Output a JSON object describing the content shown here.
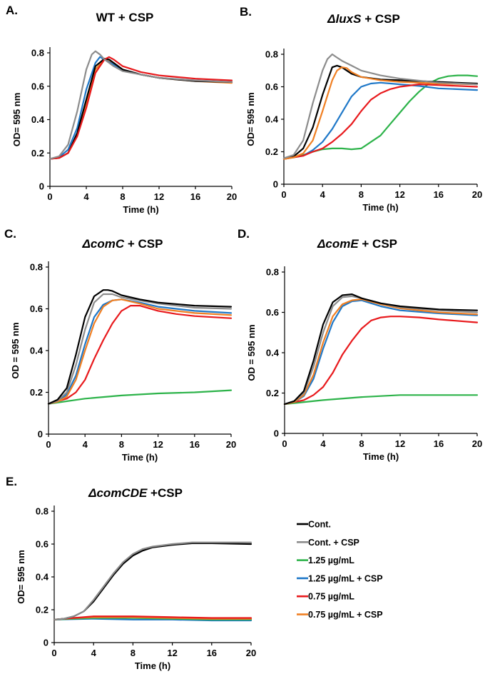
{
  "chart_data": [
    {
      "type": "line",
      "panel_label": "A.",
      "title_parts": [
        {
          "text": "WT + CSP",
          "italic": false
        }
      ],
      "xlabel": "Time (h)",
      "ylabel": "OD= 595 nm",
      "xlim": [
        0,
        20
      ],
      "ylim": [
        0,
        0.8
      ],
      "xticks": [
        "0",
        "4",
        "8",
        "12",
        "16",
        "20"
      ],
      "yticks": [
        "0",
        "0.2",
        "0.4",
        "0.6",
        "0.8"
      ],
      "series": [
        {
          "name": "0.75 µg/mL + CSP",
          "x": [
            0,
            1,
            2,
            3,
            4,
            5,
            6,
            7,
            8,
            10,
            12,
            16,
            20
          ],
          "y": [
            0.165,
            0.17,
            0.2,
            0.3,
            0.5,
            0.7,
            0.765,
            0.74,
            0.7,
            0.67,
            0.65,
            0.63,
            0.62
          ]
        },
        {
          "name": "1.25 µg/mL + CSP",
          "x": [
            0,
            1,
            2,
            3,
            4,
            5,
            5.5,
            6,
            7,
            8,
            10,
            12,
            16,
            20
          ],
          "y": [
            0.165,
            0.175,
            0.22,
            0.35,
            0.58,
            0.74,
            0.775,
            0.76,
            0.73,
            0.7,
            0.67,
            0.65,
            0.635,
            0.625
          ]
        },
        {
          "name": "Cont.",
          "x": [
            0,
            1,
            2,
            3,
            4,
            5,
            6,
            6.5,
            7,
            8,
            10,
            12,
            16,
            20
          ],
          "y": [
            0.165,
            0.17,
            0.2,
            0.32,
            0.52,
            0.72,
            0.765,
            0.76,
            0.74,
            0.7,
            0.67,
            0.65,
            0.63,
            0.625
          ]
        },
        {
          "name": "0.75 µg/mL",
          "x": [
            0,
            1,
            2,
            3,
            4,
            5,
            6,
            6.5,
            7,
            8,
            10,
            12,
            16,
            20
          ],
          "y": [
            0.165,
            0.17,
            0.2,
            0.3,
            0.47,
            0.68,
            0.76,
            0.775,
            0.76,
            0.72,
            0.685,
            0.665,
            0.645,
            0.635
          ]
        },
        {
          "name": "Cont. + CSP",
          "x": [
            0,
            1,
            2,
            3,
            4,
            4.6,
            5,
            5.5,
            6,
            7,
            8,
            10,
            12,
            16,
            20
          ],
          "y": [
            0.165,
            0.18,
            0.25,
            0.45,
            0.7,
            0.79,
            0.81,
            0.79,
            0.76,
            0.72,
            0.69,
            0.67,
            0.65,
            0.635,
            0.625
          ]
        }
      ]
    },
    {
      "type": "line",
      "panel_label": "B.",
      "title_parts": [
        {
          "text": "ΔluxS",
          "italic": true
        },
        {
          "text": " + CSP",
          "italic": false
        }
      ],
      "xlabel": "Time (h)",
      "ylabel": "OD= 595 nm",
      "xlim": [
        0,
        20
      ],
      "ylim": [
        0,
        0.8
      ],
      "xticks": [
        "0",
        "4",
        "8",
        "12",
        "16",
        "20"
      ],
      "yticks": [
        "0",
        "0.2",
        "0.4",
        "0.6",
        "0.8"
      ],
      "series": [
        {
          "name": "1.25 µg/mL",
          "x": [
            0,
            1,
            2,
            3,
            4,
            5,
            6,
            7,
            8,
            8.5,
            9,
            10,
            11,
            12,
            13,
            14,
            15,
            16,
            17,
            18,
            19,
            20
          ],
          "y": [
            0.155,
            0.165,
            0.18,
            0.2,
            0.215,
            0.22,
            0.22,
            0.215,
            0.22,
            0.24,
            0.26,
            0.3,
            0.37,
            0.44,
            0.51,
            0.57,
            0.62,
            0.65,
            0.665,
            0.67,
            0.67,
            0.665
          ]
        },
        {
          "name": "Cont.",
          "x": [
            0,
            1,
            2,
            3,
            4,
            5,
            5.5,
            6,
            7,
            8,
            10,
            12,
            16,
            20
          ],
          "y": [
            0.155,
            0.17,
            0.22,
            0.35,
            0.55,
            0.72,
            0.73,
            0.72,
            0.68,
            0.66,
            0.645,
            0.64,
            0.63,
            0.62
          ]
        },
        {
          "name": "1.25 µg/mL + CSP",
          "x": [
            0,
            2,
            3,
            4,
            5,
            6,
            7,
            8,
            9,
            10,
            12,
            14,
            16,
            20
          ],
          "y": [
            0.155,
            0.175,
            0.21,
            0.26,
            0.34,
            0.44,
            0.54,
            0.6,
            0.62,
            0.625,
            0.615,
            0.605,
            0.59,
            0.58
          ]
        },
        {
          "name": "0.75 µg/mL",
          "x": [
            0,
            2,
            3,
            4,
            5,
            6,
            7,
            8,
            9,
            10,
            11,
            12,
            14,
            16,
            20
          ],
          "y": [
            0.155,
            0.175,
            0.2,
            0.22,
            0.26,
            0.31,
            0.37,
            0.45,
            0.52,
            0.56,
            0.585,
            0.6,
            0.615,
            0.61,
            0.6
          ]
        },
        {
          "name": "0.75 µg/mL + CSP",
          "x": [
            0,
            1,
            2,
            3,
            4,
            5,
            5.5,
            6,
            6.5,
            7,
            8,
            10,
            12,
            16,
            20
          ],
          "y": [
            0.155,
            0.165,
            0.19,
            0.27,
            0.45,
            0.64,
            0.7,
            0.72,
            0.715,
            0.69,
            0.66,
            0.64,
            0.63,
            0.62,
            0.615
          ]
        },
        {
          "name": "Cont. + CSP",
          "x": [
            0,
            1,
            2,
            3,
            4,
            4.5,
            5,
            5.5,
            6,
            7,
            8,
            10,
            12,
            16,
            20
          ],
          "y": [
            0.16,
            0.18,
            0.27,
            0.5,
            0.7,
            0.77,
            0.8,
            0.78,
            0.76,
            0.73,
            0.7,
            0.67,
            0.65,
            0.625,
            0.615
          ]
        }
      ]
    },
    {
      "type": "line",
      "panel_label": "C.",
      "title_parts": [
        {
          "text": "ΔcomC",
          "italic": true
        },
        {
          "text": " + CSP",
          "italic": false
        }
      ],
      "xlabel": "Time (h)",
      "ylabel": "OD = 595 nm",
      "xlim": [
        0,
        20
      ],
      "ylim": [
        0,
        0.8
      ],
      "xticks": [
        "0",
        "4",
        "8",
        "12",
        "16",
        "20"
      ],
      "yticks": [
        "0",
        "0.2",
        "0.4",
        "0.6",
        "0.8"
      ],
      "series": [
        {
          "name": "1.25 µg/mL",
          "x": [
            0,
            4,
            8,
            12,
            16,
            20
          ],
          "y": [
            0.145,
            0.17,
            0.185,
            0.195,
            0.2,
            0.21
          ]
        },
        {
          "name": "0.75 µg/mL",
          "x": [
            0,
            2,
            3,
            4,
            5,
            6,
            7,
            8,
            9,
            10,
            12,
            14,
            16,
            20
          ],
          "y": [
            0.145,
            0.17,
            0.2,
            0.26,
            0.36,
            0.45,
            0.53,
            0.59,
            0.615,
            0.615,
            0.59,
            0.575,
            0.565,
            0.555
          ]
        },
        {
          "name": "1.25 µg/mL + CSP",
          "x": [
            0,
            1,
            2,
            3,
            4,
            5,
            6,
            7,
            8,
            10,
            12,
            16,
            20
          ],
          "y": [
            0.145,
            0.155,
            0.19,
            0.28,
            0.43,
            0.56,
            0.62,
            0.64,
            0.645,
            0.63,
            0.61,
            0.59,
            0.58
          ]
        },
        {
          "name": "0.75 µg/mL + CSP",
          "x": [
            0,
            1,
            2,
            3,
            4,
            5,
            6,
            7,
            8,
            10,
            12,
            16,
            20
          ],
          "y": [
            0.145,
            0.155,
            0.18,
            0.26,
            0.4,
            0.53,
            0.61,
            0.64,
            0.645,
            0.625,
            0.6,
            0.58,
            0.57
          ]
        },
        {
          "name": "Cont. + CSP",
          "x": [
            0,
            1,
            2,
            3,
            4,
            5,
            6,
            7,
            8,
            10,
            12,
            16,
            20
          ],
          "y": [
            0.145,
            0.16,
            0.2,
            0.33,
            0.5,
            0.63,
            0.67,
            0.67,
            0.655,
            0.64,
            0.625,
            0.605,
            0.6
          ]
        },
        {
          "name": "Cont.",
          "x": [
            0,
            1,
            2,
            3,
            4,
            5,
            6,
            6.5,
            7,
            8,
            10,
            12,
            16,
            20
          ],
          "y": [
            0.145,
            0.165,
            0.22,
            0.38,
            0.56,
            0.66,
            0.69,
            0.69,
            0.685,
            0.665,
            0.645,
            0.63,
            0.615,
            0.61
          ]
        }
      ]
    },
    {
      "type": "line",
      "panel_label": "D.",
      "title_parts": [
        {
          "text": "ΔcomE",
          "italic": true
        },
        {
          "text": " + CSP",
          "italic": false
        }
      ],
      "xlabel": "Time (h)",
      "ylabel": "OD = 595 nm",
      "xlim": [
        0,
        20
      ],
      "ylim": [
        0,
        0.8
      ],
      "xticks": [
        "0",
        "4",
        "8",
        "12",
        "16",
        "20"
      ],
      "yticks": [
        "0",
        "0.2",
        "0.4",
        "0.6",
        "0.8"
      ],
      "series": [
        {
          "name": "1.25 µg/mL",
          "x": [
            0,
            4,
            8,
            12,
            16,
            20
          ],
          "y": [
            0.145,
            0.165,
            0.18,
            0.19,
            0.19,
            0.19
          ]
        },
        {
          "name": "0.75 µg/mL",
          "x": [
            0,
            2,
            3,
            4,
            5,
            6,
            7,
            8,
            9,
            10,
            11,
            12,
            14,
            16,
            20
          ],
          "y": [
            0.145,
            0.165,
            0.19,
            0.23,
            0.3,
            0.39,
            0.46,
            0.52,
            0.56,
            0.575,
            0.58,
            0.58,
            0.575,
            0.565,
            0.55
          ]
        },
        {
          "name": "1.25 µg/mL + CSP",
          "x": [
            0,
            1,
            2,
            3,
            4,
            5,
            6,
            7,
            8,
            10,
            12,
            16,
            20
          ],
          "y": [
            0.145,
            0.155,
            0.185,
            0.27,
            0.42,
            0.55,
            0.63,
            0.655,
            0.66,
            0.63,
            0.61,
            0.595,
            0.585
          ]
        },
        {
          "name": "0.75 µg/mL + CSP",
          "x": [
            0,
            1,
            2,
            3,
            4,
            5,
            6,
            7,
            8,
            10,
            12,
            16,
            20
          ],
          "y": [
            0.145,
            0.155,
            0.19,
            0.29,
            0.45,
            0.58,
            0.64,
            0.66,
            0.665,
            0.64,
            0.62,
            0.6,
            0.59
          ]
        },
        {
          "name": "Cont. + CSP",
          "x": [
            0,
            1,
            2,
            3,
            4,
            5,
            6,
            7,
            8,
            10,
            12,
            16,
            20
          ],
          "y": [
            0.145,
            0.16,
            0.2,
            0.33,
            0.5,
            0.63,
            0.675,
            0.68,
            0.67,
            0.645,
            0.625,
            0.61,
            0.6
          ]
        },
        {
          "name": "Cont.",
          "x": [
            0,
            1,
            2,
            3,
            4,
            5,
            6,
            7,
            8,
            10,
            12,
            16,
            20
          ],
          "y": [
            0.145,
            0.16,
            0.21,
            0.36,
            0.54,
            0.65,
            0.685,
            0.69,
            0.67,
            0.645,
            0.63,
            0.615,
            0.61
          ]
        }
      ]
    },
    {
      "type": "line",
      "panel_label": "E.",
      "title_parts": [
        {
          "text": "ΔcomCDE",
          "italic": true
        },
        {
          "text": " +CSP",
          "italic": false
        }
      ],
      "xlabel": "Time (h)",
      "ylabel": "OD= 595 nm",
      "xlim": [
        0,
        20
      ],
      "ylim": [
        0,
        0.8
      ],
      "xticks": [
        "0",
        "4",
        "8",
        "12",
        "16",
        "20"
      ],
      "yticks": [
        "0",
        "0.2",
        "0.4",
        "0.6",
        "0.8"
      ],
      "series": [
        {
          "name": "1.25 µg/mL + CSP",
          "x": [
            0,
            4,
            8,
            12,
            16,
            20
          ],
          "y": [
            0.14,
            0.145,
            0.14,
            0.14,
            0.135,
            0.135
          ]
        },
        {
          "name": "1.25 µg/mL",
          "x": [
            0,
            4,
            8,
            12,
            16,
            20
          ],
          "y": [
            0.14,
            0.15,
            0.15,
            0.145,
            0.14,
            0.14
          ]
        },
        {
          "name": "0.75 µg/mL + CSP",
          "x": [
            0,
            2,
            4,
            6,
            8,
            12,
            16,
            20
          ],
          "y": [
            0.14,
            0.15,
            0.155,
            0.155,
            0.155,
            0.15,
            0.145,
            0.145
          ]
        },
        {
          "name": "0.75 µg/mL",
          "x": [
            0,
            2,
            4,
            6,
            8,
            12,
            16,
            20
          ],
          "y": [
            0.14,
            0.15,
            0.16,
            0.16,
            0.16,
            0.155,
            0.15,
            0.15
          ]
        },
        {
          "name": "Cont.",
          "x": [
            0,
            1,
            2,
            3,
            4,
            5,
            6,
            7,
            8,
            9,
            10,
            12,
            14,
            16,
            20
          ],
          "y": [
            0.14,
            0.145,
            0.16,
            0.19,
            0.25,
            0.33,
            0.41,
            0.48,
            0.53,
            0.56,
            0.58,
            0.595,
            0.605,
            0.605,
            0.6
          ]
        },
        {
          "name": "Cont. + CSP",
          "x": [
            0,
            1,
            2,
            3,
            4,
            5,
            6,
            7,
            8,
            9,
            10,
            12,
            14,
            16,
            20
          ],
          "y": [
            0.14,
            0.145,
            0.16,
            0.19,
            0.26,
            0.34,
            0.42,
            0.49,
            0.54,
            0.57,
            0.585,
            0.6,
            0.61,
            0.61,
            0.61
          ]
        }
      ]
    }
  ],
  "legend": [
    {
      "label": "Cont.",
      "color": "#000000"
    },
    {
      "label": "Cont. + CSP",
      "color": "#8c8c8c"
    },
    {
      "label": "1.25 µg/mL",
      "color": "#2db34a"
    },
    {
      "label": "1.25 µg/mL + CSP",
      "color": "#1f78c8"
    },
    {
      "label": "0.75 µg/mL",
      "color": "#e8191c"
    },
    {
      "label": "0.75 µg/mL + CSP",
      "color": "#f07f22"
    }
  ]
}
